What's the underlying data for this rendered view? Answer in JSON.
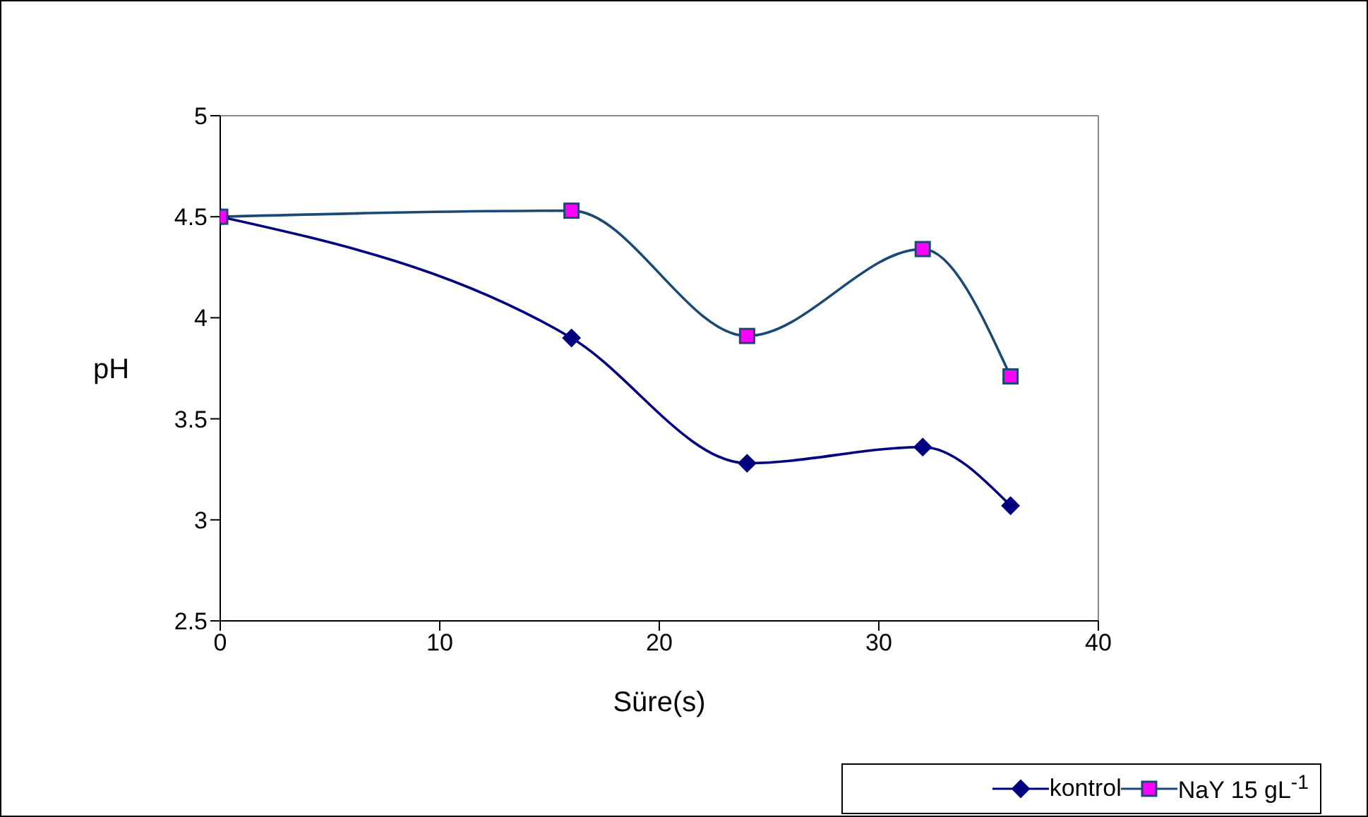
{
  "chart_data": {
    "type": "line",
    "xlabel": "Süre(s)",
    "ylabel": "pH",
    "x": [
      0,
      16,
      24,
      32,
      36
    ],
    "series": [
      {
        "name": "kontrol",
        "color": "#000080",
        "marker": "diamond",
        "values": [
          4.5,
          3.9,
          3.28,
          3.36,
          3.07
        ]
      },
      {
        "name": "NaY 15 gL$^{-1}$",
        "color": "#ff00ff",
        "marker": "square",
        "values": [
          4.5,
          4.53,
          3.91,
          4.34,
          3.71
        ]
      }
    ],
    "xlim": [
      0,
      40
    ],
    "xticks": [
      0,
      10,
      20,
      30,
      40
    ],
    "ylim": [
      2.5,
      5
    ],
    "yticks": [
      2.5,
      3,
      3.5,
      4,
      4.5,
      5
    ],
    "grid": false,
    "legend": "bottom right",
    "line_style": "solid"
  }
}
